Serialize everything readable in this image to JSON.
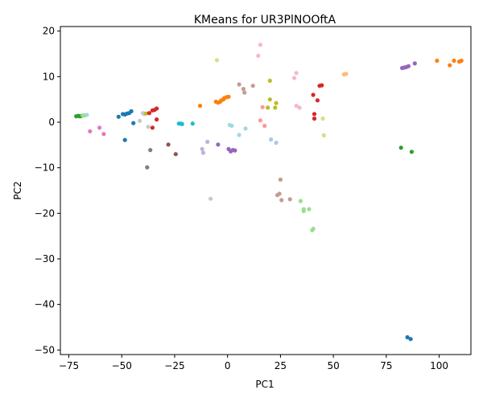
{
  "chart_data": {
    "type": "scatter",
    "title": "KMeans for UR3PlNOOftA",
    "xlabel": "PC1",
    "ylabel": "PC2",
    "xlim": [
      -79,
      115
    ],
    "ylim": [
      -51,
      21
    ],
    "xticks": [
      -75,
      -50,
      -25,
      0,
      25,
      50,
      75,
      100
    ],
    "yticks": [
      -50,
      -40,
      -30,
      -20,
      -10,
      0,
      10,
      20
    ],
    "grid": false,
    "legend": "none",
    "points": [
      {
        "x": -71.5,
        "y": 1.3,
        "color": "#2ca02c"
      },
      {
        "x": -70.5,
        "y": 1.4,
        "color": "#2ca02c"
      },
      {
        "x": -69.8,
        "y": 1.3,
        "color": "#2ca02c"
      },
      {
        "x": -69.0,
        "y": 1.4,
        "color": "#2ca02c"
      },
      {
        "x": -68.5,
        "y": 1.5,
        "color": "#98df8a"
      },
      {
        "x": -67.5,
        "y": 1.5,
        "color": "#98df8a"
      },
      {
        "x": -66.5,
        "y": 1.6,
        "color": "#9edae5"
      },
      {
        "x": -65.0,
        "y": -2.0,
        "color": "#e377c2"
      },
      {
        "x": -60.5,
        "y": -1.2,
        "color": "#e377c2"
      },
      {
        "x": -58.5,
        "y": -2.6,
        "color": "#e377c2"
      },
      {
        "x": -51.5,
        "y": 1.2,
        "color": "#1f77b4"
      },
      {
        "x": -49.5,
        "y": 1.8,
        "color": "#1f77b4"
      },
      {
        "x": -48.5,
        "y": 1.7,
        "color": "#1f77b4"
      },
      {
        "x": -47.5,
        "y": 1.9,
        "color": "#1f77b4"
      },
      {
        "x": -46.5,
        "y": 2.0,
        "color": "#1f77b4"
      },
      {
        "x": -45.5,
        "y": 2.4,
        "color": "#1f77b4"
      },
      {
        "x": -44.5,
        "y": -0.2,
        "color": "#1f77b4"
      },
      {
        "x": -48.5,
        "y": -3.9,
        "color": "#1f77b4"
      },
      {
        "x": -41.5,
        "y": 0.3,
        "color": "#c7c7c7"
      },
      {
        "x": -40.0,
        "y": 2.0,
        "color": "#c7c7c7"
      },
      {
        "x": -39.5,
        "y": 1.8,
        "color": "#c7c7c7"
      },
      {
        "x": -38.5,
        "y": 1.9,
        "color": "#bcbd22"
      },
      {
        "x": -37.5,
        "y": -1.0,
        "color": "#c7c7c7"
      },
      {
        "x": -37.0,
        "y": 2.0,
        "color": "#d62728"
      },
      {
        "x": -35.5,
        "y": 2.6,
        "color": "#d62728"
      },
      {
        "x": -34.5,
        "y": 2.7,
        "color": "#d62728"
      },
      {
        "x": -33.5,
        "y": 3.0,
        "color": "#d62728"
      },
      {
        "x": -33.5,
        "y": 0.6,
        "color": "#d62728"
      },
      {
        "x": -35.5,
        "y": -1.2,
        "color": "#d62728"
      },
      {
        "x": -36.5,
        "y": -6.1,
        "color": "#7f7f7f"
      },
      {
        "x": -38.0,
        "y": -9.9,
        "color": "#7f7f7f"
      },
      {
        "x": -28.0,
        "y": -4.9,
        "color": "#8c564b"
      },
      {
        "x": -24.5,
        "y": -7.0,
        "color": "#8c564b"
      },
      {
        "x": -23.0,
        "y": -0.3,
        "color": "#17becf"
      },
      {
        "x": -22.0,
        "y": -0.3,
        "color": "#17becf"
      },
      {
        "x": -21.5,
        "y": -0.4,
        "color": "#17becf"
      },
      {
        "x": -16.5,
        "y": -0.3,
        "color": "#17becf"
      },
      {
        "x": -13.0,
        "y": 3.6,
        "color": "#ff7f0e"
      },
      {
        "x": -12.0,
        "y": -5.9,
        "color": "#c5b0d5"
      },
      {
        "x": -11.5,
        "y": -6.7,
        "color": "#c5b0d5"
      },
      {
        "x": -9.5,
        "y": -4.3,
        "color": "#c5b0d5"
      },
      {
        "x": -8.0,
        "y": -16.8,
        "color": "#c7c7c7"
      },
      {
        "x": -5.0,
        "y": 13.6,
        "color": "#dbdb8d"
      },
      {
        "x": -5.5,
        "y": 4.5,
        "color": "#ff7f0e"
      },
      {
        "x": -4.5,
        "y": 4.3,
        "color": "#ff7f0e"
      },
      {
        "x": -3.5,
        "y": 4.5,
        "color": "#ff7f0e"
      },
      {
        "x": -3.0,
        "y": 4.8,
        "color": "#ff7f0e"
      },
      {
        "x": -2.0,
        "y": 5.0,
        "color": "#ff7f0e"
      },
      {
        "x": -1.5,
        "y": 5.3,
        "color": "#ff7f0e"
      },
      {
        "x": -0.5,
        "y": 5.5,
        "color": "#ff7f0e"
      },
      {
        "x": 0.5,
        "y": 5.6,
        "color": "#ff7f0e"
      },
      {
        "x": -4.5,
        "y": -4.9,
        "color": "#9467bd"
      },
      {
        "x": 0.5,
        "y": -5.9,
        "color": "#9467bd"
      },
      {
        "x": 1.5,
        "y": -6.4,
        "color": "#9467bd"
      },
      {
        "x": 2.5,
        "y": -6.1,
        "color": "#9467bd"
      },
      {
        "x": 3.5,
        "y": -6.2,
        "color": "#9467bd"
      },
      {
        "x": 1.0,
        "y": -0.6,
        "color": "#9edae5"
      },
      {
        "x": 2.0,
        "y": -0.8,
        "color": "#9edae5"
      },
      {
        "x": 5.5,
        "y": -2.8,
        "color": "#9edae5"
      },
      {
        "x": 8.5,
        "y": -1.4,
        "color": "#9edae5"
      },
      {
        "x": 5.5,
        "y": 8.3,
        "color": "#c49c94"
      },
      {
        "x": 7.5,
        "y": 7.3,
        "color": "#c49c94"
      },
      {
        "x": 8.0,
        "y": 6.5,
        "color": "#c49c94"
      },
      {
        "x": 12.0,
        "y": 8.0,
        "color": "#c49c94"
      },
      {
        "x": 14.5,
        "y": 14.6,
        "color": "#f7b6d2"
      },
      {
        "x": 15.5,
        "y": 17.0,
        "color": "#f7b6d2"
      },
      {
        "x": 15.5,
        "y": 0.4,
        "color": "#ff9896"
      },
      {
        "x": 16.5,
        "y": 3.3,
        "color": "#ff9896"
      },
      {
        "x": 17.5,
        "y": -0.8,
        "color": "#ff9896"
      },
      {
        "x": 19.0,
        "y": 3.2,
        "color": "#bcbd22"
      },
      {
        "x": 20.0,
        "y": 9.1,
        "color": "#bcbd22"
      },
      {
        "x": 20.0,
        "y": 5.0,
        "color": "#bcbd22"
      },
      {
        "x": 22.5,
        "y": 3.2,
        "color": "#bcbd22"
      },
      {
        "x": 23.0,
        "y": 4.2,
        "color": "#bcbd22"
      },
      {
        "x": 20.5,
        "y": -3.8,
        "color": "#aec7e8"
      },
      {
        "x": 23.0,
        "y": -4.5,
        "color": "#aec7e8"
      },
      {
        "x": 23.5,
        "y": -16.0,
        "color": "#c49c94"
      },
      {
        "x": 24.5,
        "y": -15.7,
        "color": "#c49c94"
      },
      {
        "x": 25.0,
        "y": -12.6,
        "color": "#c49c94"
      },
      {
        "x": 25.5,
        "y": -17.1,
        "color": "#c49c94"
      },
      {
        "x": 29.5,
        "y": -16.9,
        "color": "#c49c94"
      },
      {
        "x": 31.5,
        "y": 9.7,
        "color": "#f7b6d2"
      },
      {
        "x": 32.5,
        "y": 10.8,
        "color": "#f7b6d2"
      },
      {
        "x": 32.5,
        "y": 3.6,
        "color": "#f7b6d2"
      },
      {
        "x": 34.0,
        "y": 3.2,
        "color": "#f7b6d2"
      },
      {
        "x": 34.5,
        "y": -17.3,
        "color": "#98df8a"
      },
      {
        "x": 36.0,
        "y": -19.5,
        "color": "#98df8a"
      },
      {
        "x": 36.0,
        "y": -19.1,
        "color": "#98df8a"
      },
      {
        "x": 38.5,
        "y": -19.1,
        "color": "#98df8a"
      },
      {
        "x": 40.0,
        "y": -23.7,
        "color": "#98df8a"
      },
      {
        "x": 40.5,
        "y": -23.4,
        "color": "#98df8a"
      },
      {
        "x": 40.5,
        "y": 6.0,
        "color": "#d62728"
      },
      {
        "x": 41.0,
        "y": 1.8,
        "color": "#d62728"
      },
      {
        "x": 41.0,
        "y": 0.8,
        "color": "#d62728"
      },
      {
        "x": 42.5,
        "y": 4.8,
        "color": "#d62728"
      },
      {
        "x": 43.5,
        "y": 8.0,
        "color": "#d62728"
      },
      {
        "x": 44.5,
        "y": 8.1,
        "color": "#d62728"
      },
      {
        "x": 45.0,
        "y": 0.8,
        "color": "#dbdb8d"
      },
      {
        "x": 45.5,
        "y": -2.9,
        "color": "#dbdb8d"
      },
      {
        "x": 55.0,
        "y": 10.5,
        "color": "#ffbb78"
      },
      {
        "x": 56.0,
        "y": 10.6,
        "color": "#ffbb78"
      },
      {
        "x": 82.5,
        "y": 11.9,
        "color": "#9467bd"
      },
      {
        "x": 83.5,
        "y": 12.0,
        "color": "#9467bd"
      },
      {
        "x": 84.5,
        "y": 12.1,
        "color": "#9467bd"
      },
      {
        "x": 85.5,
        "y": 12.3,
        "color": "#9467bd"
      },
      {
        "x": 88.5,
        "y": 12.9,
        "color": "#9467bd"
      },
      {
        "x": 82.0,
        "y": -5.6,
        "color": "#2ca02c"
      },
      {
        "x": 87.0,
        "y": -6.5,
        "color": "#2ca02c"
      },
      {
        "x": 85.0,
        "y": -47.2,
        "color": "#1f77b4"
      },
      {
        "x": 86.5,
        "y": -47.6,
        "color": "#1f77b4"
      },
      {
        "x": 99.0,
        "y": 13.5,
        "color": "#ff7f0e"
      },
      {
        "x": 105.0,
        "y": 12.5,
        "color": "#ff7f0e"
      },
      {
        "x": 107.0,
        "y": 13.5,
        "color": "#ff7f0e"
      },
      {
        "x": 109.5,
        "y": 13.3,
        "color": "#ff7f0e"
      },
      {
        "x": 110.5,
        "y": 13.5,
        "color": "#ff7f0e"
      }
    ]
  }
}
